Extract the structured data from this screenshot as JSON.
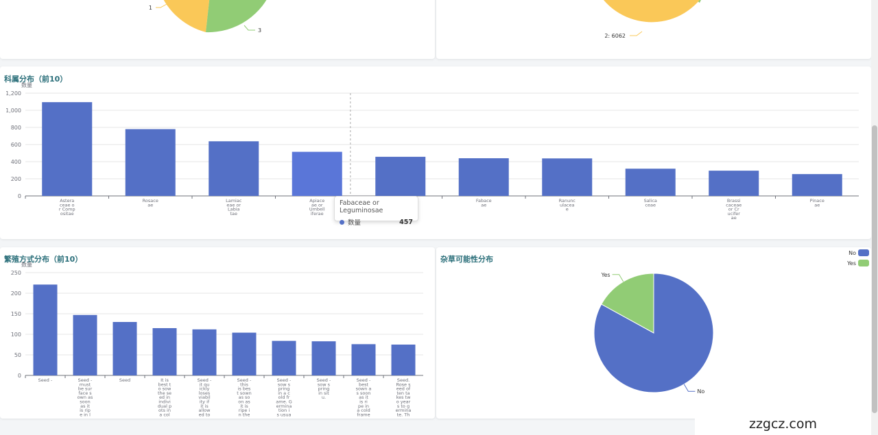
{
  "colors": {
    "blue": "#5470c6",
    "green": "#91cc75",
    "yellow": "#fac858",
    "hover_blue": "#5a76d8"
  },
  "chart_data": [
    {
      "id": "top_left_pie",
      "type": "pie",
      "title": "",
      "visible_labels": [
        "1",
        "3"
      ],
      "colors": [
        "#fac858",
        "#91cc75"
      ]
    },
    {
      "id": "top_right_donut",
      "type": "pie",
      "title": "",
      "visible_labels": [
        "2: 6062"
      ],
      "colors": [
        "#fac858",
        "#91cc75"
      ]
    },
    {
      "id": "family",
      "type": "bar",
      "title": "科属分布（前10）",
      "ylabel": "数量",
      "ylim": [
        0,
        1200
      ],
      "yticks": [
        "0",
        "200",
        "400",
        "600",
        "800",
        "1,000",
        "1,200"
      ],
      "categories": [
        "Asteraceae or Compositae",
        "Rosaceae",
        "Lamiaceae or Labiatae",
        "Apiaceae or Umbelliferae",
        "Fabaceae or Leguminosae",
        "Fabaceae",
        "Ranunculaceae",
        "Salicaceae",
        "Brassicaceae or Cruciferae",
        "Pinaceae"
      ],
      "tick_labels": [
        [
          "Astera",
          "ceae o",
          "r Comp",
          "ositae"
        ],
        [
          "Rosace",
          "ae"
        ],
        [
          "Lamiac",
          "eae or",
          "Labia",
          "tae"
        ],
        [
          "Apiace",
          "ae or",
          "Umbell",
          "iferae"
        ],
        [],
        [
          "Fabace",
          "ae"
        ],
        [
          "Ranunc",
          "ulacea",
          "e"
        ],
        [
          "Salica",
          "ceae"
        ],
        [
          "Brassi",
          "caceae",
          "or Cr",
          "ucifer",
          "ae"
        ],
        [
          "Pinace",
          "ae"
        ]
      ],
      "values": [
        1095,
        780,
        638,
        515,
        457,
        440,
        438,
        318,
        295,
        255
      ],
      "highlight_index": 3,
      "grid": true,
      "tooltip": {
        "title": "Fabaceae or Leguminosae",
        "series": "数量",
        "value": "457"
      }
    },
    {
      "id": "propagation",
      "type": "bar",
      "title": "繁殖方式分布（前10）",
      "ylabel": "数量",
      "ylim": [
        0,
        250
      ],
      "yticks": [
        "0",
        "50",
        "100",
        "150",
        "200",
        "250"
      ],
      "tick_labels": [
        [
          "Seed -"
        ],
        [
          "Seed -",
          "must",
          "be sur",
          "face s",
          "own as",
          "soon",
          "as it",
          "is rip",
          "e in l"
        ],
        [
          "Seed"
        ],
        [
          "It is",
          "best t",
          "o sow",
          "the se",
          "ed in",
          "indivi",
          "dual p",
          "ots in",
          "a col"
        ],
        [
          "Seed -",
          "it qu",
          "ickly",
          "loses",
          "viabil",
          "ity if",
          "it is",
          "allow",
          "ed to"
        ],
        [
          "Seed -",
          "this",
          "is bes",
          "t sown",
          "as so",
          "on as",
          "it is",
          "ripe i",
          "n the"
        ],
        [
          "Seed -",
          "sow s",
          "pring",
          "in a c",
          "old fr",
          "ame. G",
          "ermina",
          "tion i",
          "s usua"
        ],
        [
          "Seed -",
          "sow s",
          "pring",
          "in sit",
          "u."
        ],
        [
          "Seed -",
          "best",
          "sown a",
          "s soon",
          "as it",
          "is ri",
          "pe in",
          "a cold",
          "frame"
        ],
        [
          "Seed.",
          "Rose s",
          "eed of",
          "ten ta",
          "kes tw",
          "o year",
          "s to g",
          "ermina",
          "te. Th"
        ]
      ],
      "values": [
        221,
        147,
        130,
        115,
        112,
        104,
        84,
        83,
        76,
        75
      ],
      "grid": true
    },
    {
      "id": "weed",
      "type": "pie",
      "title": "杂草可能性分布",
      "legend": [
        "No",
        "Yes"
      ],
      "legend_position": "top-right",
      "categories": [
        "No",
        "Yes"
      ],
      "values": [
        83,
        17
      ],
      "colors": [
        "#5470c6",
        "#91cc75"
      ]
    }
  ],
  "watermark": "zzgcz.com"
}
